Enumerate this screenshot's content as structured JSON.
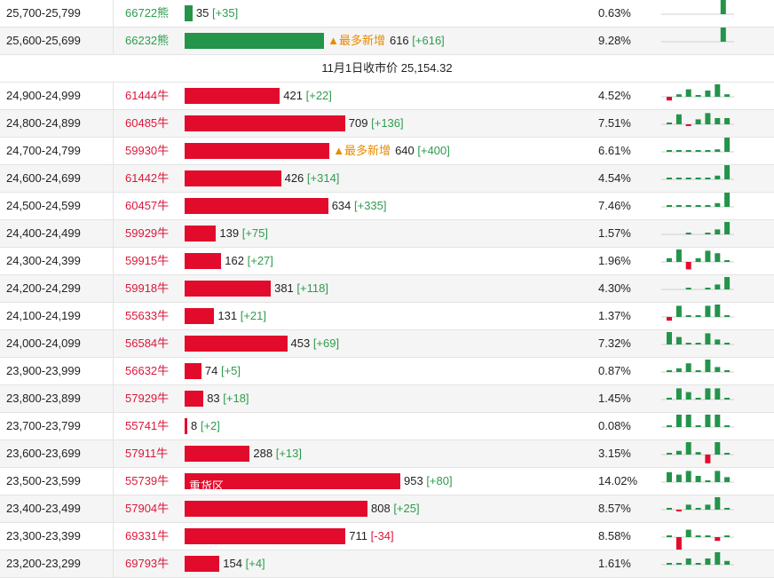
{
  "colors": {
    "bear": "#23944a",
    "bull": "#e30b2b",
    "note": "#e98b00"
  },
  "separator": {
    "text": "11月1日收市价 25,154.32",
    "after_index": 1
  },
  "scale_max": 953,
  "rows": [
    {
      "range": "25,700-25,799",
      "oi": "66722熊",
      "side": "bear",
      "value": 35,
      "value_label": "35",
      "change": "[+35]",
      "note": "",
      "pct": "0.63%",
      "spark": [
        0,
        0,
        0,
        0,
        0,
        0,
        0,
        0,
        1.2,
        0
      ]
    },
    {
      "range": "25,600-25,699",
      "oi": "66232熊",
      "side": "bear",
      "value": 616,
      "value_label": "616",
      "change": "[+616]",
      "note": "▲最多新增",
      "pct": "9.28%",
      "spark": [
        0,
        0,
        0,
        0,
        0,
        0,
        0,
        0,
        1.2,
        0
      ]
    },
    {
      "range": "24,900-24,999",
      "oi": "61444牛",
      "side": "bull",
      "value": 421,
      "value_label": "421",
      "change": "[+22]",
      "note": "",
      "pct": "4.52%",
      "spark": [
        -0.3,
        0.2,
        0.6,
        0.1,
        0.5,
        1.0,
        0.2
      ]
    },
    {
      "range": "24,800-24,899",
      "oi": "60485牛",
      "side": "bull",
      "value": 709,
      "value_label": "709",
      "change": "[+136]",
      "note": "",
      "pct": "7.51%",
      "spark": [
        0.1,
        0.8,
        -0.1,
        0.4,
        0.9,
        0.5,
        0.5
      ]
    },
    {
      "range": "24,700-24,799",
      "oi": "59930牛",
      "side": "bull",
      "value": 640,
      "value_label": "640",
      "change": "[+400]",
      "note": "▲最多新增",
      "pct": "6.61%",
      "spark": [
        0.1,
        0.1,
        0.1,
        0.1,
        0.1,
        0.2,
        1.2
      ]
    },
    {
      "range": "24,600-24,699",
      "oi": "61442牛",
      "side": "bull",
      "value": 426,
      "value_label": "426",
      "change": "[+314]",
      "note": "",
      "pct": "4.54%",
      "spark": [
        0.1,
        0.1,
        0.1,
        0.1,
        0.1,
        0.3,
        1.2
      ]
    },
    {
      "range": "24,500-24,599",
      "oi": "60457牛",
      "side": "bull",
      "value": 634,
      "value_label": "634",
      "change": "[+335]",
      "note": "",
      "pct": "7.46%",
      "spark": [
        0.1,
        0.1,
        0.1,
        0.1,
        0.1,
        0.3,
        1.2
      ]
    },
    {
      "range": "24,400-24,499",
      "oi": "59929牛",
      "side": "bull",
      "value": 139,
      "value_label": "139",
      "change": "[+75]",
      "note": "",
      "pct": "1.57%",
      "spark": [
        0,
        0,
        0.1,
        0,
        0.1,
        0.4,
        1.0
      ]
    },
    {
      "range": "24,300-24,399",
      "oi": "59915牛",
      "side": "bull",
      "value": 162,
      "value_label": "162",
      "change": "[+27]",
      "note": "",
      "pct": "1.96%",
      "spark": [
        0.3,
        1.0,
        -0.6,
        0.3,
        0.9,
        0.7,
        0.1
      ]
    },
    {
      "range": "24,200-24,299",
      "oi": "59918牛",
      "side": "bull",
      "value": 381,
      "value_label": "381",
      "change": "[+118]",
      "note": "",
      "pct": "4.30%",
      "spark": [
        0,
        0,
        0.1,
        0,
        0.1,
        0.4,
        1.0
      ]
    },
    {
      "range": "24,100-24,199",
      "oi": "55633牛",
      "side": "bull",
      "value": 131,
      "value_label": "131",
      "change": "[+21]",
      "note": "",
      "pct": "1.37%",
      "spark": [
        -0.3,
        0.9,
        0.1,
        0.1,
        0.9,
        1.0,
        0.1
      ]
    },
    {
      "range": "24,000-24,099",
      "oi": "56584牛",
      "side": "bull",
      "value": 453,
      "value_label": "453",
      "change": "[+69]",
      "note": "",
      "pct": "7.32%",
      "spark": [
        1.0,
        0.6,
        0.1,
        0.1,
        0.9,
        0.4,
        0.1
      ]
    },
    {
      "range": "23,900-23,999",
      "oi": "56632牛",
      "side": "bull",
      "value": 74,
      "value_label": "74",
      "change": "[+5]",
      "note": "",
      "pct": "0.87%",
      "spark": [
        0.1,
        0.3,
        0.7,
        0.1,
        1.0,
        0.4,
        0.1
      ]
    },
    {
      "range": "23,800-23,899",
      "oi": "57929牛",
      "side": "bull",
      "value": 83,
      "value_label": "83",
      "change": "[+18]",
      "note": "",
      "pct": "1.45%",
      "spark": [
        0.1,
        0.9,
        0.6,
        0.1,
        0.9,
        0.9,
        0.1
      ]
    },
    {
      "range": "23,700-23,799",
      "oi": "55741牛",
      "side": "bull",
      "value": 8,
      "value_label": "8",
      "change": "[+2]",
      "note": "",
      "pct": "0.08%",
      "spark": [
        0.1,
        1.0,
        1.0,
        0.1,
        1.0,
        1.0,
        0.1
      ]
    },
    {
      "range": "23,600-23,699",
      "oi": "57911牛",
      "side": "bull",
      "value": 288,
      "value_label": "288",
      "change": "[+13]",
      "note": "",
      "pct": "3.15%",
      "spark": [
        0.1,
        0.3,
        1.0,
        0.2,
        -0.7,
        1.0,
        0.1
      ]
    },
    {
      "range": "23,500-23,599",
      "oi": "55739牛",
      "side": "bull",
      "value": 953,
      "value_label": "953",
      "change": "[+80]",
      "note": "",
      "heavy": "重货区",
      "pct": "14.02%",
      "spark": [
        0.8,
        0.6,
        0.9,
        0.5,
        0.1,
        0.9,
        0.4
      ]
    },
    {
      "range": "23,400-23,499",
      "oi": "57904牛",
      "side": "bull",
      "value": 808,
      "value_label": "808",
      "change": "[+25]",
      "note": "",
      "pct": "8.57%",
      "spark": [
        0.1,
        -0.1,
        0.4,
        0.1,
        0.4,
        1.0,
        0.1
      ]
    },
    {
      "range": "23,300-23,399",
      "oi": "69331牛",
      "side": "bull",
      "value": 711,
      "value_label": "711",
      "change": "[-34]",
      "note": "",
      "pct": "8.58%",
      "spark": [
        0.1,
        -1.0,
        0.6,
        0.1,
        0.1,
        -0.3,
        0.1
      ]
    },
    {
      "range": "23,200-23,299",
      "oi": "69793牛",
      "side": "bull",
      "value": 154,
      "value_label": "154",
      "change": "[+4]",
      "note": "",
      "pct": "1.61%",
      "spark": [
        0.1,
        0.1,
        0.5,
        0.1,
        0.5,
        1.0,
        0.3
      ]
    }
  ]
}
